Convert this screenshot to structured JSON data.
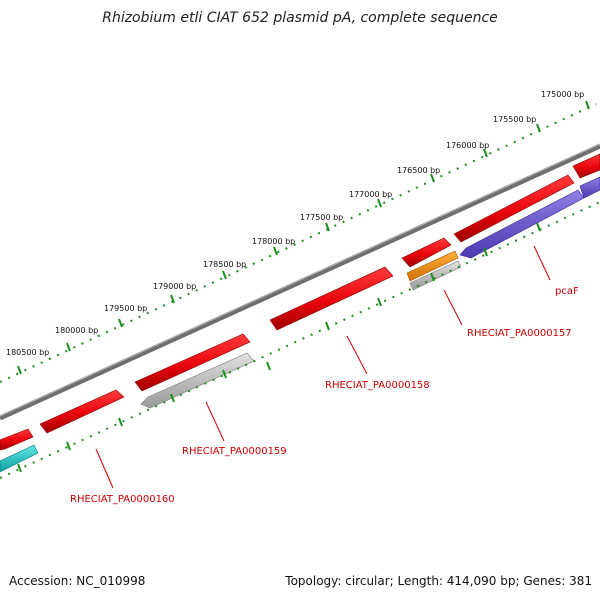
{
  "title": "Rhizobium etli CIAT 652 plasmid pA, complete sequence",
  "footer": {
    "accession": "Accession: NC_010998",
    "summary": "Topology: circular; Length: 414,090 bp; Genes: 381"
  },
  "colors": {
    "backbone": "#808080",
    "cds_forward": "#e8050b",
    "cds_reverse_gray": "#bdbdbd",
    "orange": "#f2900c",
    "purple": "#6b58cf",
    "cyan": "#1bc8c8",
    "tick": "#1a8f1a",
    "label": "#cc0000"
  },
  "scale_labels": [
    "175000 bp",
    "175500 bp",
    "176000 bp",
    "176500 bp",
    "177000 bp",
    "177500 bp",
    "178000 bp",
    "178500 bp",
    "179000 bp",
    "179500 bp",
    "180000 bp",
    "180500 bp"
  ],
  "gene_labels": [
    "pcaF",
    "RHECIAT_PA0000157",
    "RHECIAT_PA0000158",
    "RHECIAT_PA0000159",
    "RHECIAT_PA0000160"
  ]
}
